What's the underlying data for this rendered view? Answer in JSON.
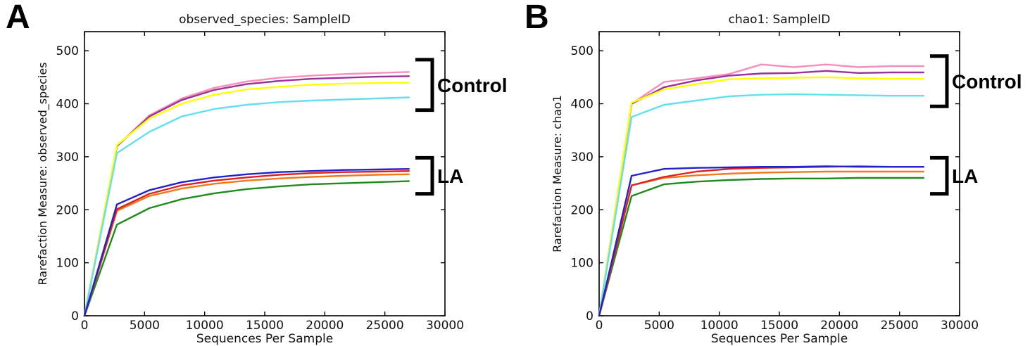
{
  "figure": {
    "background": "#ffffff",
    "text_color": "#111111",
    "frame_color": "#000000",
    "annotation_color": "#000000"
  },
  "chart_data": [
    {
      "letter": "A",
      "type": "line",
      "title": "observed_species: SampleID",
      "xlabel": "Sequences Per Sample",
      "ylabel": "Rarefaction Measure: observed_species",
      "xlim": [
        0,
        30000
      ],
      "ylim": [
        0,
        536
      ],
      "xticks": [
        0,
        5000,
        10000,
        15000,
        20000,
        25000,
        30000
      ],
      "yticks": [
        0,
        100,
        200,
        300,
        400,
        500
      ],
      "grid": false,
      "legend": "none (groups labeled by brackets)",
      "x": [
        0,
        2700,
        5400,
        8100,
        10800,
        13500,
        16200,
        18900,
        21600,
        24300,
        27000
      ],
      "series": [
        {
          "name": "control-pink",
          "group": "Control",
          "color": "#f78fba",
          "values": [
            0,
            320,
            378,
            410,
            430,
            442,
            449,
            453,
            456,
            458,
            460
          ]
        },
        {
          "name": "control-purple",
          "group": "Control",
          "color": "#993399",
          "values": [
            0,
            320,
            376,
            407,
            426,
            437,
            443,
            447,
            449,
            451,
            452
          ]
        },
        {
          "name": "control-yellow",
          "group": "Control",
          "color": "#ffff00",
          "values": [
            0,
            322,
            372,
            400,
            417,
            427,
            432,
            436,
            438,
            439,
            440
          ]
        },
        {
          "name": "control-cyan",
          "group": "Control",
          "color": "#63dff0",
          "values": [
            0,
            307,
            347,
            376,
            390,
            398,
            403,
            406,
            408,
            410,
            412
          ]
        },
        {
          "name": "la-green",
          "group": "LA",
          "color": "#1e8b1e",
          "values": [
            0,
            172,
            203,
            220,
            231,
            239,
            244,
            248,
            250,
            252,
            254
          ]
        },
        {
          "name": "la-orange",
          "group": "LA",
          "color": "#ee7a1a",
          "values": [
            0,
            198,
            226,
            240,
            249,
            255,
            259,
            262,
            264,
            266,
            267
          ]
        },
        {
          "name": "la-red",
          "group": "LA",
          "color": "#e02020",
          "values": [
            0,
            201,
            230,
            246,
            255,
            261,
            266,
            269,
            271,
            272,
            273
          ]
        },
        {
          "name": "la-blue",
          "group": "LA",
          "color": "#2222cc",
          "values": [
            0,
            210,
            237,
            252,
            261,
            267,
            271,
            273,
            275,
            276,
            277
          ]
        }
      ],
      "groups": [
        {
          "label": "Control",
          "value_top": 483,
          "value_bottom": 388
        },
        {
          "label": "LA",
          "value_top": 298,
          "value_bottom": 230
        }
      ]
    },
    {
      "letter": "B",
      "type": "line",
      "title": "chao1: SampleID",
      "xlabel": "Sequences Per Sample",
      "ylabel": "Rarefaction Measure: chao1",
      "xlim": [
        0,
        30000
      ],
      "ylim": [
        0,
        536
      ],
      "xticks": [
        0,
        5000,
        10000,
        15000,
        20000,
        25000,
        30000
      ],
      "yticks": [
        0,
        100,
        200,
        300,
        400,
        500
      ],
      "grid": false,
      "legend": "none (groups labeled by brackets)",
      "x": [
        0,
        2700,
        5400,
        8100,
        10800,
        13500,
        16200,
        18900,
        21600,
        24300,
        27000
      ],
      "series": [
        {
          "name": "control-pink",
          "group": "Control",
          "color": "#f78fba",
          "values": [
            0,
            400,
            441,
            448,
            456,
            474,
            469,
            474,
            469,
            471,
            471
          ]
        },
        {
          "name": "control-purple",
          "group": "Control",
          "color": "#993399",
          "values": [
            0,
            400,
            431,
            444,
            453,
            457,
            458,
            462,
            458,
            459,
            459
          ]
        },
        {
          "name": "control-yellow",
          "group": "Control",
          "color": "#ffff00",
          "values": [
            0,
            402,
            427,
            437,
            446,
            448,
            449,
            450,
            448,
            447,
            447
          ]
        },
        {
          "name": "control-cyan",
          "group": "Control",
          "color": "#63dff0",
          "values": [
            0,
            375,
            398,
            406,
            414,
            417,
            418,
            417,
            416,
            415,
            415
          ]
        },
        {
          "name": "la-green",
          "group": "LA",
          "color": "#1e8b1e",
          "values": [
            0,
            226,
            248,
            253,
            256,
            258,
            259,
            259,
            260,
            260,
            260
          ]
        },
        {
          "name": "la-orange",
          "group": "LA",
          "color": "#ee7a1a",
          "values": [
            0,
            246,
            260,
            265,
            268,
            270,
            271,
            272,
            272,
            272,
            272
          ]
        },
        {
          "name": "la-red",
          "group": "LA",
          "color": "#e02020",
          "values": [
            0,
            246,
            262,
            272,
            277,
            279,
            280,
            281,
            282,
            281,
            281
          ]
        },
        {
          "name": "la-blue",
          "group": "LA",
          "color": "#2222cc",
          "values": [
            0,
            264,
            277,
            279,
            280,
            281,
            281,
            282,
            281,
            281,
            281
          ]
        }
      ],
      "groups": [
        {
          "label": "Control",
          "value_top": 490,
          "value_bottom": 395
        },
        {
          "label": "LA",
          "value_top": 298,
          "value_bottom": 230
        }
      ]
    }
  ]
}
